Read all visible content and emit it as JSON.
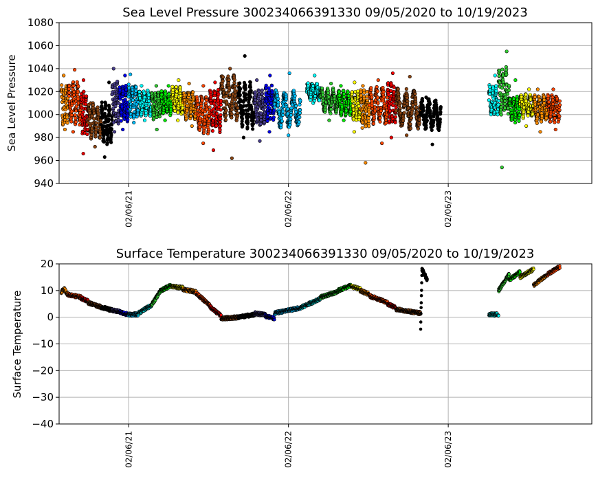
{
  "chart_data": [
    {
      "type": "scatter",
      "title": "Sea Level Pressure 300234066391330  09/05/2020 to 10/19/2023",
      "xlabel": "",
      "ylabel": "Sea Level Pressure",
      "ylim": [
        940,
        1080
      ],
      "yticks": [
        940,
        960,
        980,
        1000,
        1020,
        1040,
        1060,
        1080
      ],
      "xlim": [
        "2020-08-31",
        "2023-12-31"
      ],
      "xticks": [
        {
          "date": "2021-02-06",
          "label": "02/06/21"
        },
        {
          "date": "2022-02-06",
          "label": "02/06/22"
        },
        {
          "date": "2023-02-06",
          "label": "02/06/23"
        }
      ],
      "grid": true,
      "series": [
        {
          "start": "2020-09-05",
          "end": "2020-09-20",
          "color": "#ff8c00",
          "base": 1008,
          "amp": 14,
          "min": 987,
          "max": 1034
        },
        {
          "start": "2020-09-20",
          "end": "2020-10-20",
          "color": "#ff4500",
          "base": 1010,
          "amp": 14,
          "min": 985,
          "max": 1039
        },
        {
          "start": "2020-10-20",
          "end": "2020-11-05",
          "color": "#ee0000",
          "base": 1002,
          "amp": 14,
          "min": 966,
          "max": 1030
        },
        {
          "start": "2020-11-05",
          "end": "2020-12-05",
          "color": "#8b4513",
          "base": 994,
          "amp": 12,
          "min": 972,
          "max": 1010
        },
        {
          "start": "2020-12-05",
          "end": "2020-12-30",
          "color": "#000000",
          "base": 993,
          "amp": 14,
          "min": 963,
          "max": 1028
        },
        {
          "start": "2020-12-30",
          "end": "2021-01-15",
          "color": "#483d8b",
          "base": 1010,
          "amp": 14,
          "min": 985,
          "max": 1040
        },
        {
          "start": "2021-01-15",
          "end": "2021-02-05",
          "color": "#0000ee",
          "base": 1010,
          "amp": 12,
          "min": 987,
          "max": 1034
        },
        {
          "start": "2021-02-05",
          "end": "2021-02-28",
          "color": "#00bfff",
          "base": 1012,
          "amp": 11,
          "min": 993,
          "max": 1035
        },
        {
          "start": "2021-02-28",
          "end": "2021-03-30",
          "color": "#00ffff",
          "base": 1010,
          "amp": 8,
          "min": 995,
          "max": 1025
        },
        {
          "start": "2021-03-30",
          "end": "2021-04-20",
          "color": "#32cd32",
          "base": 1008,
          "amp": 9,
          "min": 987,
          "max": 1025
        },
        {
          "start": "2021-04-20",
          "end": "2021-05-15",
          "color": "#00ee00",
          "base": 1010,
          "amp": 8,
          "min": 995,
          "max": 1025
        },
        {
          "start": "2021-05-15",
          "end": "2021-06-10",
          "color": "#ffff00",
          "base": 1012,
          "amp": 9,
          "min": 995,
          "max": 1030
        },
        {
          "start": "2021-06-10",
          "end": "2021-07-10",
          "color": "#ff8c00",
          "base": 1008,
          "amp": 9,
          "min": 990,
          "max": 1027
        },
        {
          "start": "2021-07-10",
          "end": "2021-08-10",
          "color": "#ff4500",
          "base": 1000,
          "amp": 12,
          "min": 975,
          "max": 1025
        },
        {
          "start": "2021-08-10",
          "end": "2021-09-05",
          "color": "#ee0000",
          "base": 1004,
          "amp": 14,
          "min": 969,
          "max": 1028
        },
        {
          "start": "2021-09-05",
          "end": "2021-10-15",
          "color": "#8b4513",
          "base": 1015,
          "amp": 15,
          "min": 962,
          "max": 1040
        },
        {
          "start": "2021-10-15",
          "end": "2021-11-20",
          "color": "#000000",
          "base": 1008,
          "amp": 15,
          "min": 980,
          "max": 1051
        },
        {
          "start": "2021-11-20",
          "end": "2021-12-15",
          "color": "#483d8b",
          "base": 1005,
          "amp": 12,
          "min": 977,
          "max": 1030
        },
        {
          "start": "2021-12-15",
          "end": "2022-01-05",
          "color": "#0000ee",
          "base": 1010,
          "amp": 12,
          "min": 985,
          "max": 1034
        },
        {
          "start": "2022-01-05",
          "end": "2022-03-05",
          "color": "#00bfff",
          "base": 1005,
          "amp": 12,
          "min": 982,
          "max": 1036
        },
        {
          "start": "2022-03-20",
          "end": "2022-04-20",
          "color": "#00ffff",
          "base": 1020,
          "amp": 6,
          "min": 1010,
          "max": 1034
        },
        {
          "start": "2022-04-20",
          "end": "2022-05-30",
          "color": "#32cd32",
          "base": 1012,
          "amp": 8,
          "min": 995,
          "max": 1027
        },
        {
          "start": "2022-05-30",
          "end": "2022-06-30",
          "color": "#00ee00",
          "base": 1010,
          "amp": 8,
          "min": 995,
          "max": 1025
        },
        {
          "start": "2022-06-30",
          "end": "2022-07-20",
          "color": "#ffff00",
          "base": 1008,
          "amp": 10,
          "min": 985,
          "max": 1028
        },
        {
          "start": "2022-07-20",
          "end": "2022-08-10",
          "color": "#ff8c00",
          "base": 1005,
          "amp": 12,
          "min": 958,
          "max": 1025
        },
        {
          "start": "2022-08-10",
          "end": "2022-09-20",
          "color": "#ff4500",
          "base": 1008,
          "amp": 12,
          "min": 975,
          "max": 1030
        },
        {
          "start": "2022-09-20",
          "end": "2022-10-10",
          "color": "#ee0000",
          "base": 1010,
          "amp": 13,
          "min": 980,
          "max": 1036
        },
        {
          "start": "2022-10-10",
          "end": "2022-12-05",
          "color": "#8b4513",
          "base": 1005,
          "amp": 13,
          "min": 982,
          "max": 1033
        },
        {
          "start": "2022-12-05",
          "end": "2023-01-20",
          "color": "#000000",
          "base": 1000,
          "amp": 10,
          "min": 974,
          "max": 1015
        },
        {
          "start": "2023-05-10",
          "end": "2023-06-01",
          "color": "#00ffff",
          "base": 1012,
          "amp": 10,
          "min": 1000,
          "max": 1034
        },
        {
          "start": "2023-06-01",
          "end": "2023-06-25",
          "color": "#32cd32",
          "base": 1020,
          "amp": 16,
          "min": 954,
          "max": 1055
        },
        {
          "start": "2023-06-25",
          "end": "2023-07-20",
          "color": "#00ee00",
          "base": 1005,
          "amp": 8,
          "min": 993,
          "max": 1030
        },
        {
          "start": "2023-07-20",
          "end": "2023-08-20",
          "color": "#ffff00",
          "base": 1008,
          "amp": 8,
          "min": 990,
          "max": 1022
        },
        {
          "start": "2023-08-20",
          "end": "2023-09-20",
          "color": "#ff8c00",
          "base": 1005,
          "amp": 9,
          "min": 985,
          "max": 1022
        },
        {
          "start": "2023-09-20",
          "end": "2023-10-19",
          "color": "#ff4500",
          "base": 1005,
          "amp": 9,
          "min": 987,
          "max": 1022
        }
      ]
    },
    {
      "type": "scatter",
      "title": "Surface Temperature 300234066391330  09/05/2020 to 10/19/2023",
      "xlabel": "",
      "ylabel": "Surface Temperature",
      "ylim": [
        -40,
        20
      ],
      "yticks": [
        -40,
        -30,
        -20,
        -10,
        0,
        10,
        20
      ],
      "xlim": [
        "2020-08-31",
        "2023-12-31"
      ],
      "xticks": [
        {
          "date": "2021-02-06",
          "label": "02/06/21"
        },
        {
          "date": "2022-02-06",
          "label": "02/06/22"
        },
        {
          "date": "2023-02-06",
          "label": "02/06/23"
        }
      ],
      "grid": true,
      "series": [
        {
          "color": "#ff8c00",
          "points": [
            [
              "2020-09-05",
              9.5
            ],
            [
              "2020-09-12",
              10.5
            ],
            [
              "2020-09-20",
              8.5
            ]
          ]
        },
        {
          "color": "#ff4500",
          "points": [
            [
              "2020-09-20",
              8.5
            ],
            [
              "2020-10-20",
              7.5
            ]
          ]
        },
        {
          "color": "#ee0000",
          "points": [
            [
              "2020-10-20",
              7.2
            ],
            [
              "2020-11-05",
              6.0
            ]
          ]
        },
        {
          "color": "#8b4513",
          "points": [
            [
              "2020-11-05",
              5.5
            ],
            [
              "2020-12-05",
              3.8
            ]
          ]
        },
        {
          "color": "#000000",
          "points": [
            [
              "2020-12-05",
              3.8
            ],
            [
              "2020-12-30",
              2.6
            ]
          ]
        },
        {
          "color": "#483d8b",
          "points": [
            [
              "2020-12-30",
              2.5
            ],
            [
              "2021-01-15",
              2.2
            ]
          ]
        },
        {
          "color": "#0000ee",
          "points": [
            [
              "2021-01-15",
              2.0
            ],
            [
              "2021-02-05",
              1.0
            ]
          ]
        },
        {
          "color": "#00bfff",
          "points": [
            [
              "2021-02-05",
              1.0
            ],
            [
              "2021-02-28",
              1.0
            ]
          ]
        },
        {
          "color": "#00ffff",
          "points": [
            [
              "2021-02-28",
              1.5
            ],
            [
              "2021-03-30",
              4.5
            ]
          ]
        },
        {
          "color": "#32cd32",
          "points": [
            [
              "2021-03-30",
              4.5
            ],
            [
              "2021-04-20",
              10.0
            ]
          ]
        },
        {
          "color": "#00ee00",
          "points": [
            [
              "2021-04-20",
              10.0
            ],
            [
              "2021-05-15",
              12.0
            ]
          ]
        },
        {
          "color": "#ffff00",
          "points": [
            [
              "2021-05-15",
              11.5
            ],
            [
              "2021-06-10",
              11.0
            ]
          ]
        },
        {
          "color": "#ff8c00",
          "points": [
            [
              "2021-06-10",
              10.5
            ],
            [
              "2021-07-10",
              9.5
            ]
          ]
        },
        {
          "color": "#ff4500",
          "points": [
            [
              "2021-07-10",
              9.0
            ],
            [
              "2021-08-10",
              4.5
            ]
          ]
        },
        {
          "color": "#ee0000",
          "points": [
            [
              "2021-08-10",
              4.0
            ],
            [
              "2021-09-05",
              0.5
            ]
          ]
        },
        {
          "color": "#8b4513",
          "points": [
            [
              "2021-09-05",
              -0.5
            ],
            [
              "2021-10-15",
              0.0
            ]
          ]
        },
        {
          "color": "#000000",
          "points": [
            [
              "2021-10-15",
              0.0
            ],
            [
              "2021-11-20",
              1.0
            ]
          ]
        },
        {
          "color": "#483d8b",
          "points": [
            [
              "2021-11-20",
              1.5
            ],
            [
              "2021-12-15",
              1.0
            ]
          ]
        },
        {
          "color": "#0000ee",
          "points": [
            [
              "2021-12-15",
              0.5
            ],
            [
              "2022-01-05",
              -0.5
            ]
          ]
        },
        {
          "color": "#00bfff",
          "points": [
            [
              "2022-01-05",
              1.5
            ],
            [
              "2022-03-05",
              3.5
            ]
          ]
        },
        {
          "color": "#00ffff",
          "points": [
            [
              "2022-03-05",
              3.5
            ],
            [
              "2022-04-20",
              7.0
            ]
          ]
        },
        {
          "color": "#32cd32",
          "points": [
            [
              "2022-04-20",
              7.5
            ],
            [
              "2022-05-30",
              9.5
            ]
          ]
        },
        {
          "color": "#00ee00",
          "points": [
            [
              "2022-05-30",
              10.0
            ],
            [
              "2022-06-30",
              12.0
            ]
          ]
        },
        {
          "color": "#ffff00",
          "points": [
            [
              "2022-06-30",
              11.5
            ],
            [
              "2022-07-20",
              10.5
            ]
          ]
        },
        {
          "color": "#ff8c00",
          "points": [
            [
              "2022-07-20",
              10.0
            ],
            [
              "2022-08-10",
              8.5
            ]
          ]
        },
        {
          "color": "#ff4500",
          "points": [
            [
              "2022-08-10",
              8.0
            ],
            [
              "2022-09-20",
              5.5
            ]
          ]
        },
        {
          "color": "#ee0000",
          "points": [
            [
              "2022-09-20",
              5.0
            ],
            [
              "2022-10-10",
              3.5
            ]
          ]
        },
        {
          "color": "#8b4513",
          "points": [
            [
              "2022-10-10",
              3.0
            ],
            [
              "2022-12-05",
              1.5
            ]
          ]
        },
        {
          "color": "#000000",
          "points": [
            [
              "2022-12-05",
              -4.0
            ],
            [
              "2022-12-08",
              18.0
            ],
            [
              "2022-12-20",
              14.0
            ]
          ]
        },
        {
          "color": "#00ffff",
          "points": [
            [
              "2023-05-10",
              1.0
            ],
            [
              "2023-06-01",
              1.0
            ]
          ]
        },
        {
          "color": "#32cd32",
          "points": [
            [
              "2023-06-01",
              10.0
            ],
            [
              "2023-06-25",
              16.0
            ]
          ]
        },
        {
          "color": "#00ee00",
          "points": [
            [
              "2023-06-25",
              14.0
            ],
            [
              "2023-07-20",
              17.0
            ]
          ]
        },
        {
          "color": "#ffff00",
          "points": [
            [
              "2023-07-20",
              15.0
            ],
            [
              "2023-08-20",
              18.0
            ]
          ]
        },
        {
          "color": "#ff8c00",
          "points": [
            [
              "2023-08-20",
              12.0
            ],
            [
              "2023-09-20",
              16.0
            ]
          ]
        },
        {
          "color": "#ff4500",
          "points": [
            [
              "2023-09-20",
              16.0
            ],
            [
              "2023-10-19",
              19.0
            ]
          ]
        }
      ]
    }
  ]
}
